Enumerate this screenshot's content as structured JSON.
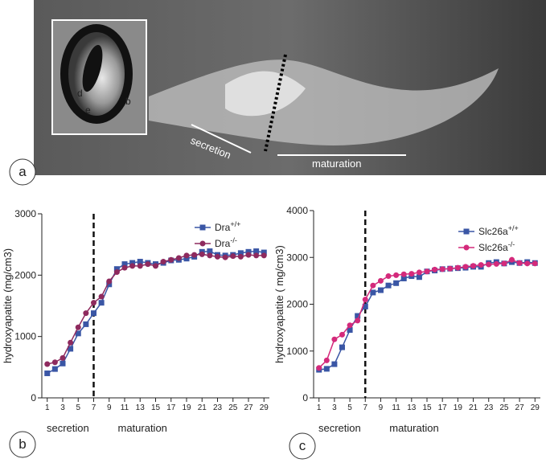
{
  "panel_a": {
    "label": "a",
    "inset_labels": [
      "d",
      "e",
      "b"
    ],
    "annotations": [
      "secretion",
      "maturation"
    ]
  },
  "chart_data": [
    {
      "type": "line",
      "panel_label": "b",
      "ylabel": "hydroxyapatite (mg/cm3)",
      "x": [
        1,
        2,
        3,
        4,
        5,
        6,
        7,
        8,
        9,
        10,
        11,
        12,
        13,
        14,
        15,
        16,
        17,
        18,
        19,
        20,
        21,
        22,
        23,
        24,
        25,
        26,
        27,
        28,
        29
      ],
      "xlim": [
        0.3,
        29.7
      ],
      "xticks": [
        1,
        3,
        5,
        7,
        9,
        11,
        13,
        15,
        17,
        19,
        21,
        23,
        25,
        27,
        29
      ],
      "ylim": [
        0,
        3000
      ],
      "yticks": [
        0,
        1000,
        2000,
        3000
      ],
      "divider_x": 7,
      "annotations": [
        "secretion",
        "maturation"
      ],
      "series": [
        {
          "name": "Dra",
          "name_sup": "+/+",
          "color": "#3a56a5",
          "marker": "square",
          "values": [
            400,
            470,
            560,
            800,
            1050,
            1200,
            1380,
            1550,
            1850,
            2100,
            2180,
            2200,
            2220,
            2200,
            2180,
            2200,
            2240,
            2250,
            2270,
            2300,
            2380,
            2390,
            2330,
            2320,
            2330,
            2360,
            2380,
            2390,
            2370
          ]
        },
        {
          "name": "Dra",
          "name_sup": "-/-",
          "color": "#8e2a5e",
          "marker": "circle",
          "values": [
            550,
            580,
            650,
            900,
            1150,
            1380,
            1550,
            1650,
            1900,
            2050,
            2120,
            2150,
            2150,
            2180,
            2150,
            2220,
            2250,
            2280,
            2320,
            2330,
            2340,
            2320,
            2300,
            2290,
            2310,
            2300,
            2330,
            2320,
            2320
          ]
        }
      ]
    },
    {
      "type": "line",
      "panel_label": "c",
      "ylabel": "hydroxyapatite ( mg/cm3)",
      "x": [
        1,
        2,
        3,
        4,
        5,
        6,
        7,
        8,
        9,
        10,
        11,
        12,
        13,
        14,
        15,
        16,
        17,
        18,
        19,
        20,
        21,
        22,
        23,
        24,
        25,
        26,
        27,
        28,
        29
      ],
      "xlim": [
        0.3,
        29.7
      ],
      "xticks": [
        1,
        3,
        5,
        7,
        9,
        11,
        13,
        15,
        17,
        19,
        21,
        23,
        25,
        27,
        29
      ],
      "ylim": [
        0,
        4000
      ],
      "yticks": [
        0,
        1000,
        2000,
        3000,
        4000
      ],
      "divider_x": 7,
      "annotations": [
        "secretion",
        "maturation"
      ],
      "series": [
        {
          "name": "Slc26a",
          "name_sup": "+/+",
          "color": "#3a56a5",
          "marker": "square",
          "values": [
            600,
            620,
            720,
            1080,
            1450,
            1750,
            1950,
            2250,
            2300,
            2400,
            2450,
            2550,
            2600,
            2580,
            2700,
            2720,
            2750,
            2760,
            2770,
            2780,
            2800,
            2800,
            2880,
            2900,
            2870,
            2900,
            2880,
            2900,
            2880
          ]
        },
        {
          "name": "Slc26a",
          "name_sup": "-/-",
          "color": "#d42a7b",
          "marker": "circle",
          "values": [
            640,
            800,
            1250,
            1350,
            1550,
            1650,
            2100,
            2400,
            2500,
            2600,
            2620,
            2640,
            2650,
            2680,
            2700,
            2740,
            2750,
            2760,
            2780,
            2800,
            2820,
            2840,
            2850,
            2860,
            2870,
            2950,
            2880,
            2870,
            2870
          ]
        }
      ]
    }
  ]
}
